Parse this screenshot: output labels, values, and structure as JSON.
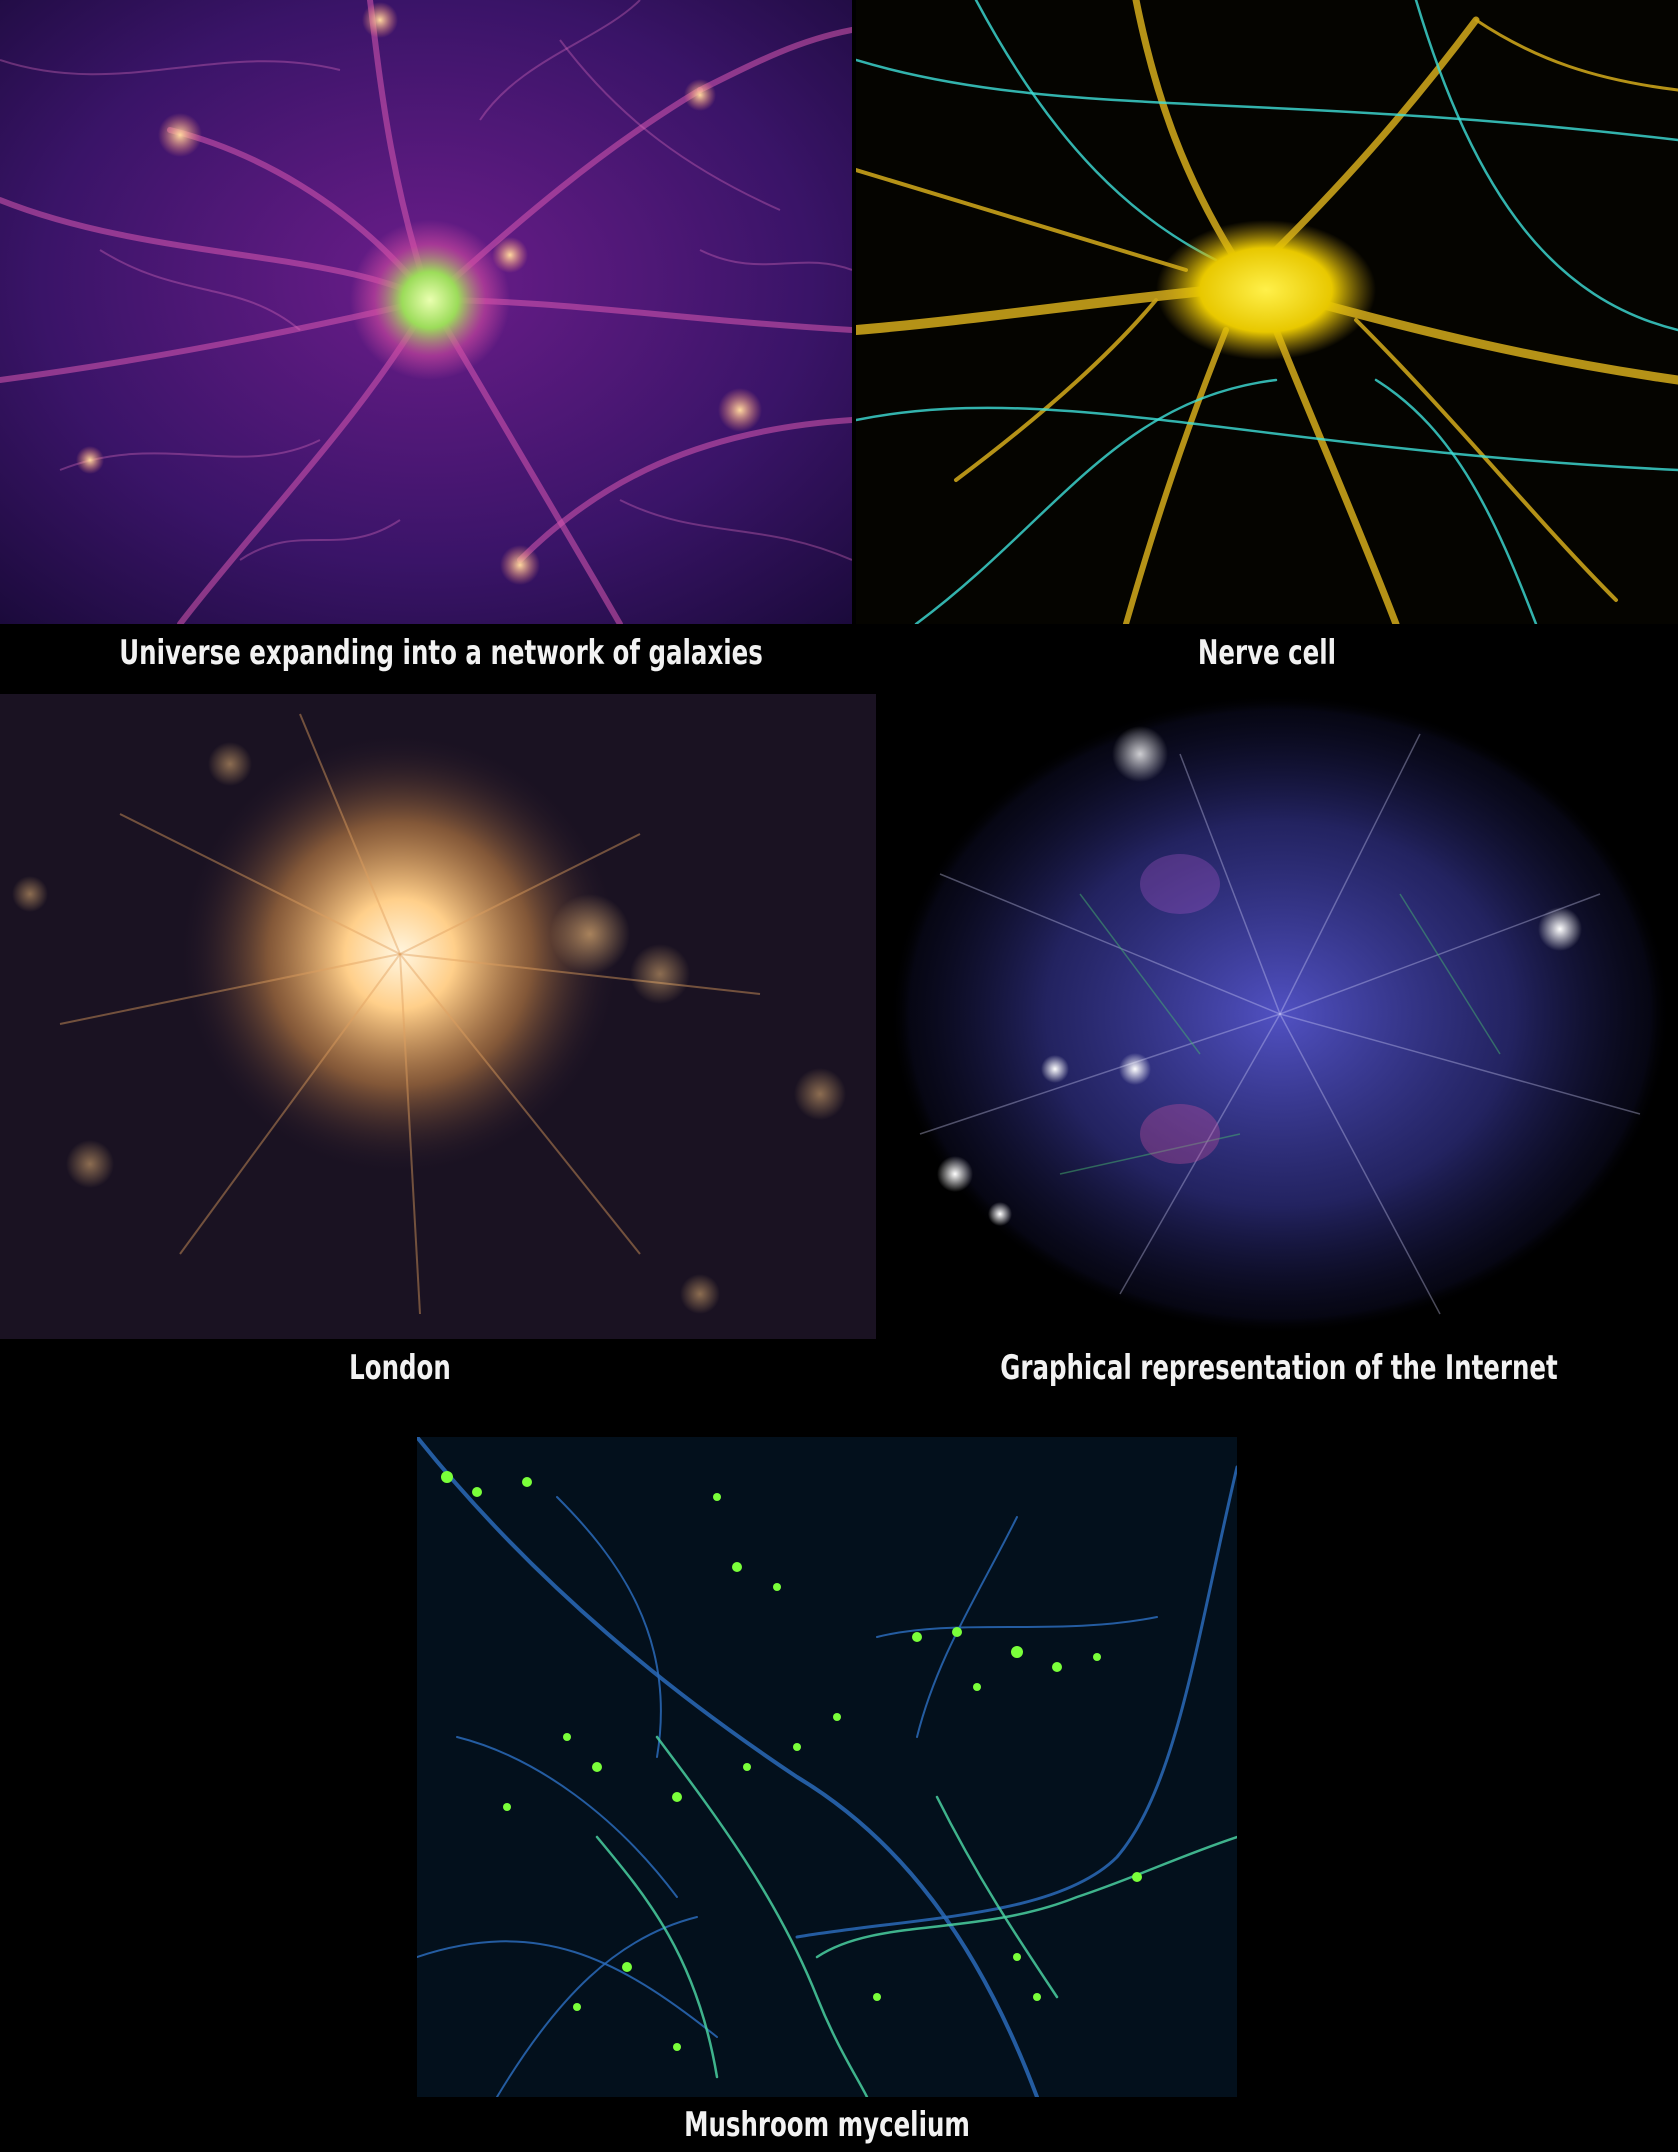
{
  "panels": [
    {
      "id": "universe",
      "caption": "Universe expanding into a network of galaxies",
      "palette": [
        "#1a0a3a",
        "#6b1d8a",
        "#d04aa0",
        "#ffb070",
        "#c9ff7a"
      ]
    },
    {
      "id": "nerve",
      "caption": "Nerve cell",
      "palette": [
        "#000000",
        "#c9a21a",
        "#ffe600",
        "#3fe0d8"
      ]
    },
    {
      "id": "london",
      "caption": "London",
      "palette": [
        "#140e1e",
        "#2a1a2e",
        "#ffb866",
        "#fff0d0"
      ]
    },
    {
      "id": "internet",
      "caption": "Graphical representation of the Internet",
      "palette": [
        "#000000",
        "#5050c8",
        "#e8e8ff",
        "#46b46e",
        "#c850a0"
      ]
    },
    {
      "id": "mycelium",
      "caption": "Mushroom mycelium",
      "palette": [
        "#03101c",
        "#2a6ab8",
        "#4ad0a0",
        "#7aff3a"
      ]
    }
  ]
}
